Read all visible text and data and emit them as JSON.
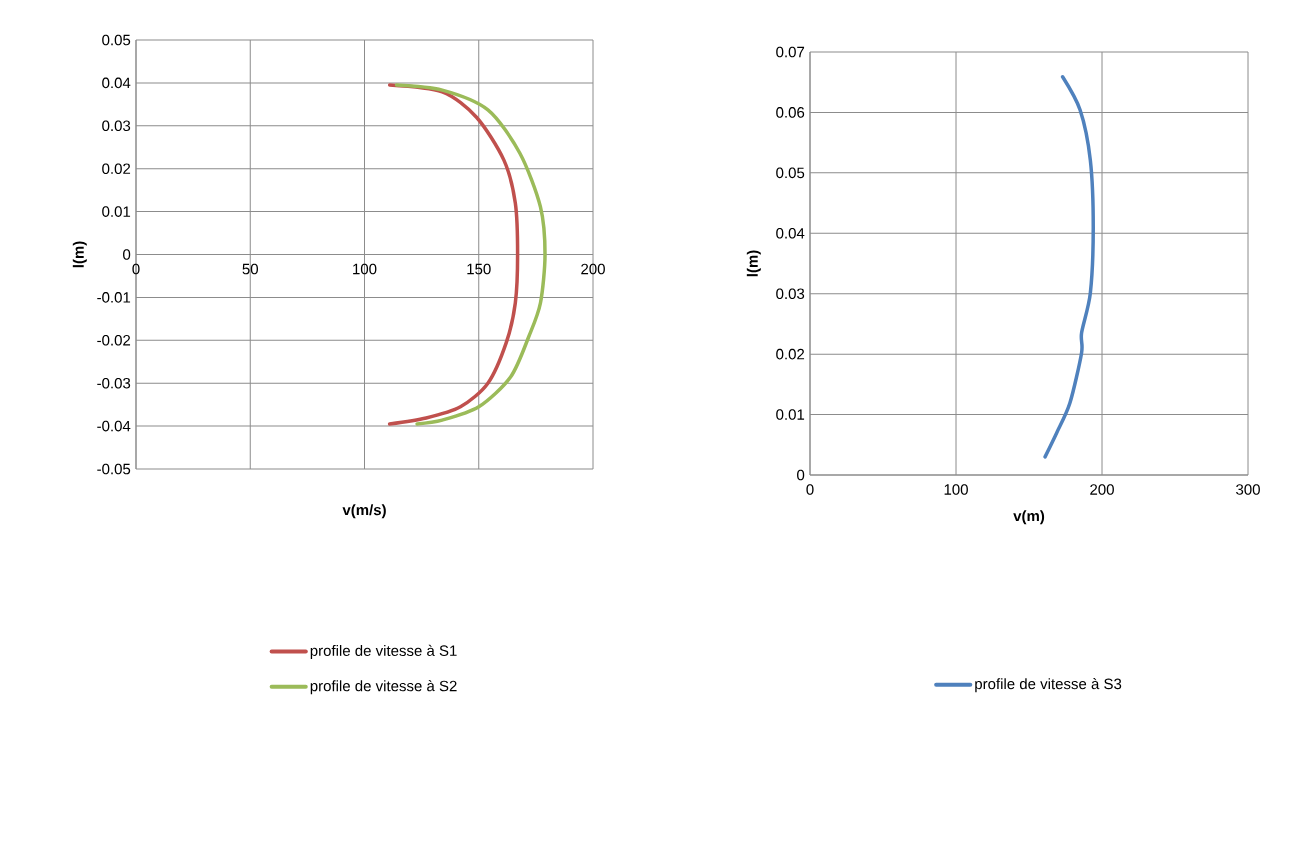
{
  "chart_data": [
    {
      "type": "line",
      "xlabel": "v(m/s)",
      "ylabel": "l(m)",
      "xlim": [
        0,
        200
      ],
      "ylim": [
        -0.05,
        0.05
      ],
      "xticks": [
        0,
        50,
        100,
        150,
        200
      ],
      "yticks": [
        0.05,
        0.04,
        0.03,
        0.02,
        0.01,
        0,
        -0.01,
        -0.02,
        -0.03,
        -0.04,
        -0.05
      ],
      "grid": true,
      "legend": "bottom",
      "marker": "none",
      "series": [
        {
          "name": "profile de vitesse à S1",
          "color": "#c0504d",
          "x": [
            111,
            134,
            149,
            161,
            166,
            167,
            166,
            162,
            154,
            142,
            127,
            111
          ],
          "values": [
            0.0395,
            0.0379,
            0.032,
            0.022,
            0.012,
            0.0,
            -0.0113,
            -0.0206,
            -0.03,
            -0.0355,
            -0.0381,
            -0.0395
          ]
        },
        {
          "name": "profile de vitesse à S2",
          "color": "#9bbb59",
          "x": [
            114,
            134,
            154,
            168,
            177,
            179,
            177,
            172,
            164,
            150,
            134,
            123
          ],
          "values": [
            0.0395,
            0.0383,
            0.0337,
            0.0236,
            0.0111,
            0.0,
            -0.0113,
            -0.019,
            -0.0285,
            -0.0355,
            -0.0386,
            -0.0395
          ]
        }
      ]
    },
    {
      "type": "line",
      "xlabel": "v(m)",
      "ylabel": "l(m)",
      "xlim": [
        0,
        300
      ],
      "ylim": [
        0,
        0.07
      ],
      "xticks": [
        0,
        100,
        200,
        300
      ],
      "yticks": [
        0,
        0.01,
        0.02,
        0.03,
        0.04,
        0.05,
        0.06,
        0.07
      ],
      "grid": true,
      "legend": "bottom",
      "marker": "none",
      "series": [
        {
          "name": "profile de vitesse à S3",
          "color": "#4f81bd",
          "x": [
            173,
            185,
            192,
            194,
            192,
            186,
            186,
            178,
            169,
            161
          ],
          "values": [
            0.0659,
            0.0604,
            0.0521,
            0.041,
            0.0301,
            0.0235,
            0.0202,
            0.0119,
            0.007,
            0.003
          ]
        }
      ]
    }
  ]
}
